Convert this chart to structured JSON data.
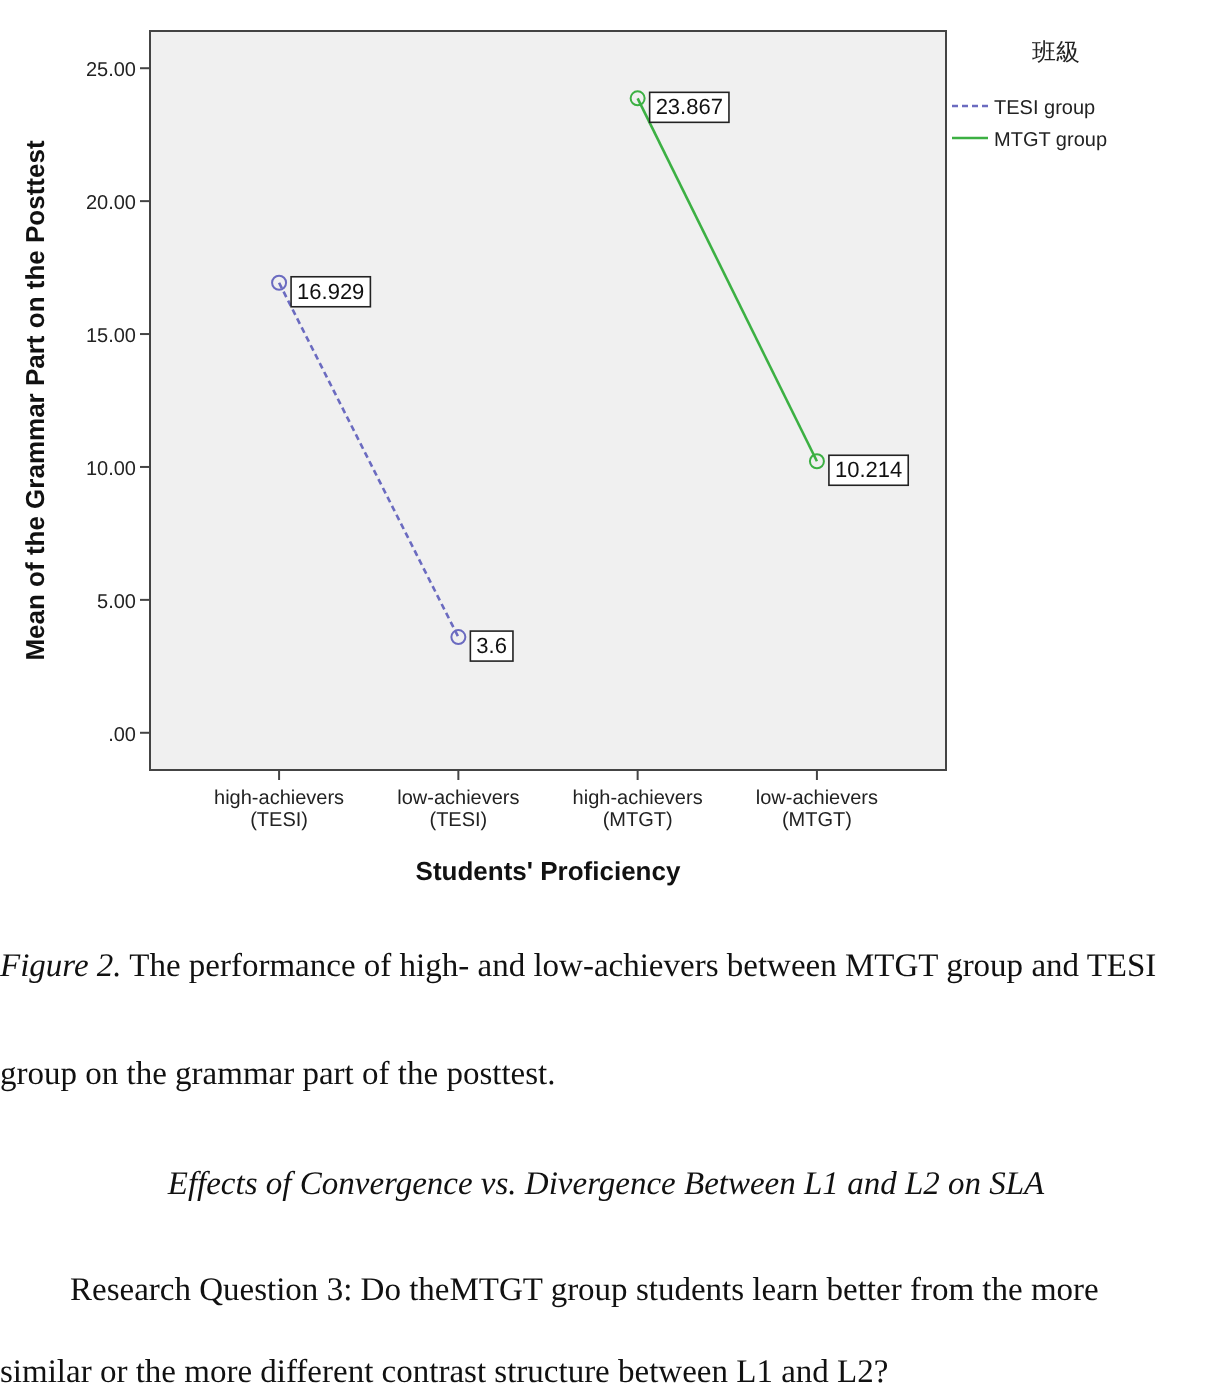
{
  "chart_data": {
    "type": "line",
    "ylabel": "Mean of the Grammar Part on the Posttest",
    "xlabel": "Students' Proficiency",
    "legend_title": "班級",
    "legend": "top right",
    "marker": "circle",
    "data_labels": true,
    "grid": false,
    "categories": [
      "high-achievers (TESI)",
      "low-achievers (TESI)",
      "high-achievers (MTGT)",
      "low-achievers (MTGT)"
    ],
    "ylim": [
      -1.4,
      26.4
    ],
    "yticks": [
      {
        "value": 0,
        "label": ".00"
      },
      {
        "value": 5,
        "label": "5.00"
      },
      {
        "value": 10,
        "label": "10.00"
      },
      {
        "value": 15,
        "label": "15.00"
      },
      {
        "value": 20,
        "label": "20.00"
      },
      {
        "value": 25,
        "label": "25.00"
      }
    ],
    "series": [
      {
        "name": "TESI group",
        "color": "#6b6bc0",
        "line_style": "dashed",
        "values": [
          16.929,
          3.6,
          null,
          null
        ]
      },
      {
        "name": "MTGT group",
        "color": "#3cb043",
        "line_style": "solid",
        "values": [
          null,
          null,
          23.867,
          10.214
        ]
      }
    ],
    "annotations": [
      "*Figure 2.* The performance of high- and low-achievers between MTGT group and TESI group on the grammar part of the posttest.",
      "Effects of Convergence vs. Divergence Between L1 and L2 on SLA",
      "Research Question 3: Do theMTGT group students learn better from the more similar or the more different contrast structure between L1 and L2?"
    ]
  }
}
